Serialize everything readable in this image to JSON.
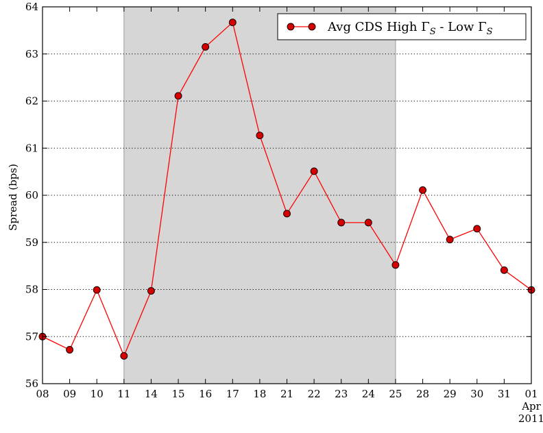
{
  "chart_data": {
    "type": "line",
    "ylabel": "Spread (bps)",
    "ylim": [
      56,
      64
    ],
    "yticks": [
      "56",
      "57",
      "58",
      "59",
      "60",
      "61",
      "62",
      "63",
      "64"
    ],
    "categories": [
      "08",
      "09",
      "10",
      "11",
      "14",
      "15",
      "16",
      "17",
      "18",
      "21",
      "22",
      "23",
      "24",
      "25",
      "28",
      "29",
      "30",
      "31",
      "01"
    ],
    "xaxis_extra": {
      "month": "Apr",
      "year": "2011"
    },
    "series": [
      {
        "name": "Avg CDS High ΓS - Low ΓS",
        "legend_main": "Avg CDS High Γ",
        "legend_mid": " - Low Γ",
        "legend_sub": "S",
        "color": "#ff0000",
        "marker_fill": "#d40000",
        "values": [
          57.0,
          56.72,
          57.99,
          56.59,
          57.97,
          62.11,
          63.15,
          63.67,
          61.27,
          59.61,
          60.51,
          59.42,
          59.42,
          58.52,
          60.11,
          59.06,
          59.29,
          58.41,
          57.99
        ]
      }
    ],
    "shaded_range": {
      "from": "11",
      "to": "25",
      "color": "#d6d6d6"
    },
    "grid": "horizontal dotted",
    "legend_position": "top-right"
  }
}
